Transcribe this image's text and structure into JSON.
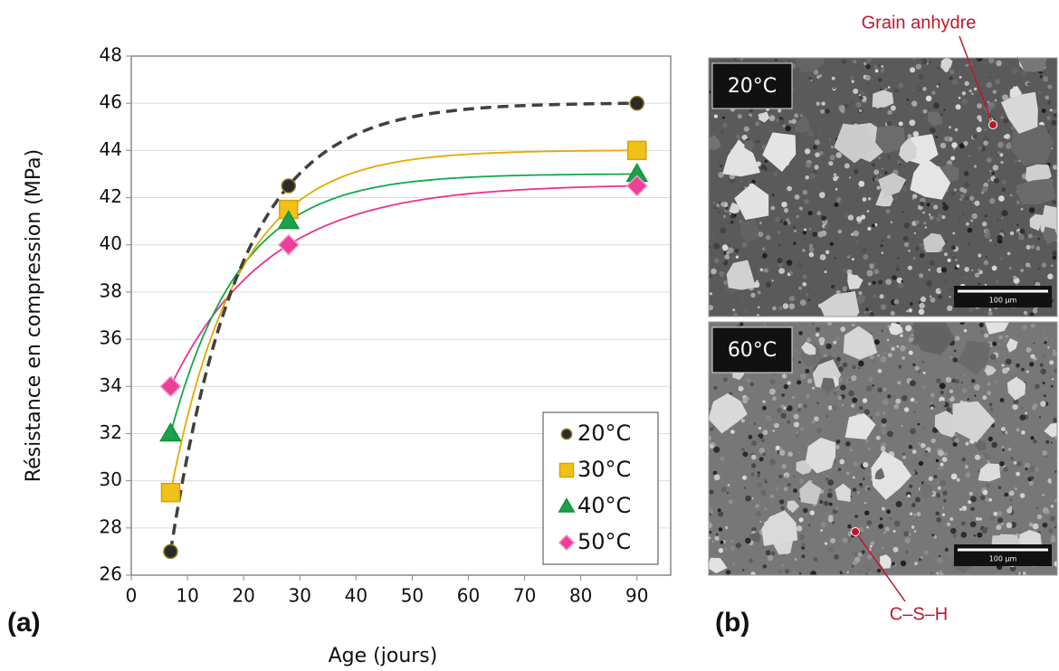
{
  "chart_data": {
    "type": "scatter",
    "x_label": "Age (jours)",
    "y_label": "Résistance en compression (MPa)",
    "x": [
      7,
      28,
      90
    ],
    "series": [
      {
        "name": "20°C",
        "color": "#2a2a2a",
        "edge": "#8a7a20",
        "marker": "circle",
        "curve_color": "#404040",
        "dashed": true,
        "values": [
          27,
          42.5,
          46
        ]
      },
      {
        "name": "30°C",
        "color": "#f2c118",
        "edge": "#d9a200",
        "marker": "square",
        "curve_color": "#e6a800",
        "dashed": false,
        "values": [
          29.5,
          41.5,
          44
        ]
      },
      {
        "name": "40°C",
        "color": "#1aa34a",
        "edge": "#12903c",
        "marker": "triangle",
        "curve_color": "#12a84a",
        "dashed": false,
        "values": [
          32,
          41,
          43
        ]
      },
      {
        "name": "50°C",
        "color": "#ec3f97",
        "edge": "#f4a0c8",
        "marker": "diamond",
        "curve_color": "#e8348a",
        "dashed": false,
        "values": [
          34,
          40,
          42.5
        ]
      }
    ],
    "xlim": [
      0,
      96
    ],
    "ylim": [
      26,
      48
    ],
    "xticks": [
      0,
      10,
      20,
      30,
      40,
      50,
      60,
      70,
      80,
      90
    ],
    "yticks": [
      26,
      28,
      30,
      32,
      34,
      36,
      38,
      40,
      42,
      44,
      46,
      48
    ],
    "grid": true,
    "legend": "lower right"
  },
  "figure": {
    "panel_a": "(a)",
    "panel_b": "(b)",
    "images": [
      {
        "label": "20°C",
        "scale": "100 µm"
      },
      {
        "label": "60°C",
        "scale": "100 µm"
      }
    ],
    "annotations": [
      "Grain anhydre",
      "C–S–H"
    ]
  }
}
